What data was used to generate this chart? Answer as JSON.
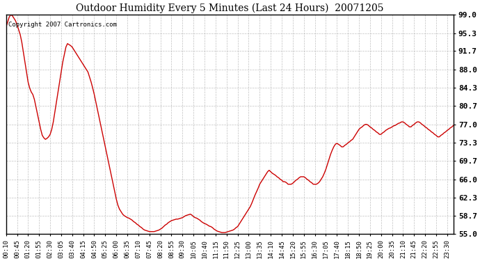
{
  "title": "Outdoor Humidity Every 5 Minutes (Last 24 Hours)  20071205",
  "copyright_text": "Copyright 2007 Cartronics.com",
  "line_color": "#cc0000",
  "bg_color": "#ffffff",
  "plot_bg_color": "#ffffff",
  "grid_color": "#b0b0b0",
  "ylim": [
    55.0,
    99.0
  ],
  "yticks": [
    55.0,
    58.7,
    62.3,
    66.0,
    69.7,
    73.3,
    77.0,
    80.7,
    84.3,
    88.0,
    91.7,
    95.3,
    99.0
  ],
  "x_labels": [
    "00:10",
    "00:45",
    "01:20",
    "01:55",
    "02:30",
    "03:05",
    "03:40",
    "04:15",
    "04:50",
    "05:25",
    "06:00",
    "06:35",
    "07:10",
    "07:45",
    "08:20",
    "08:55",
    "09:30",
    "10:05",
    "10:40",
    "11:15",
    "11:50",
    "12:25",
    "13:00",
    "13:35",
    "14:10",
    "14:45",
    "15:20",
    "15:55",
    "16:30",
    "17:05",
    "17:40",
    "18:15",
    "18:50",
    "19:25",
    "20:00",
    "20:35",
    "21:10",
    "21:45",
    "22:20",
    "22:55",
    "23:30"
  ],
  "x_tick_indices": [
    0,
    7,
    14,
    21,
    28,
    35,
    42,
    49,
    56,
    63,
    70,
    77,
    84,
    91,
    98,
    105,
    112,
    119,
    126,
    133,
    140,
    147,
    154,
    161,
    168,
    175,
    182,
    189,
    196,
    203,
    210,
    217,
    224,
    231,
    238,
    245,
    252,
    259,
    266,
    273,
    280
  ],
  "humidity": [
    96.5,
    97.5,
    98.5,
    99.0,
    98.8,
    98.3,
    97.8,
    97.0,
    96.0,
    95.0,
    93.5,
    91.5,
    89.5,
    87.5,
    85.5,
    84.3,
    83.5,
    83.0,
    82.0,
    80.5,
    79.0,
    77.5,
    76.0,
    74.8,
    74.3,
    74.0,
    74.2,
    74.5,
    75.0,
    76.0,
    77.5,
    79.5,
    81.5,
    83.5,
    85.5,
    87.5,
    89.5,
    91.0,
    92.5,
    93.2,
    93.0,
    92.8,
    92.5,
    92.0,
    91.5,
    91.0,
    90.5,
    90.0,
    89.5,
    89.0,
    88.5,
    88.0,
    87.5,
    86.5,
    85.5,
    84.3,
    83.0,
    81.5,
    80.0,
    78.5,
    77.0,
    75.5,
    74.0,
    72.5,
    71.0,
    69.5,
    68.0,
    66.5,
    65.0,
    63.5,
    62.0,
    60.8,
    60.0,
    59.5,
    59.0,
    58.7,
    58.5,
    58.3,
    58.2,
    58.0,
    57.8,
    57.5,
    57.3,
    57.0,
    56.8,
    56.5,
    56.3,
    56.0,
    55.8,
    55.7,
    55.6,
    55.5,
    55.5,
    55.5,
    55.5,
    55.6,
    55.7,
    55.8,
    56.0,
    56.2,
    56.5,
    56.8,
    57.0,
    57.3,
    57.5,
    57.7,
    57.8,
    57.9,
    58.0,
    58.0,
    58.1,
    58.2,
    58.3,
    58.5,
    58.7,
    58.8,
    58.9,
    59.0,
    58.8,
    58.5,
    58.3,
    58.2,
    58.0,
    57.8,
    57.5,
    57.3,
    57.1,
    57.0,
    56.8,
    56.6,
    56.5,
    56.3,
    56.0,
    55.8,
    55.6,
    55.5,
    55.4,
    55.3,
    55.3,
    55.3,
    55.4,
    55.5,
    55.6,
    55.7,
    55.8,
    56.0,
    56.3,
    56.5,
    57.0,
    57.5,
    58.0,
    58.5,
    59.0,
    59.5,
    60.0,
    60.5,
    61.2,
    62.0,
    62.8,
    63.5,
    64.2,
    65.0,
    65.5,
    66.0,
    66.5,
    67.0,
    67.5,
    67.8,
    67.5,
    67.2,
    67.0,
    66.8,
    66.5,
    66.3,
    66.0,
    65.8,
    65.5,
    65.5,
    65.3,
    65.0,
    65.0,
    65.0,
    65.2,
    65.5,
    65.8,
    66.0,
    66.3,
    66.5,
    66.5,
    66.5,
    66.3,
    66.0,
    65.8,
    65.5,
    65.3,
    65.0,
    65.0,
    65.0,
    65.2,
    65.5,
    66.0,
    66.5,
    67.2,
    68.0,
    69.0,
    70.0,
    71.0,
    71.8,
    72.5,
    73.0,
    73.2,
    73.0,
    72.8,
    72.5,
    72.5,
    72.8,
    73.0,
    73.3,
    73.5,
    73.8,
    74.0,
    74.5,
    75.0,
    75.5,
    76.0,
    76.3,
    76.5,
    76.8,
    77.0,
    77.0,
    76.8,
    76.5,
    76.3,
    76.0,
    75.8,
    75.5,
    75.3,
    75.0,
    75.0,
    75.3,
    75.5,
    75.8,
    76.0,
    76.2,
    76.3,
    76.5,
    76.7,
    76.8,
    77.0,
    77.2,
    77.3,
    77.5,
    77.5,
    77.3,
    77.0,
    76.8,
    76.5,
    76.5,
    76.8,
    77.0,
    77.3,
    77.5,
    77.5,
    77.3,
    77.0,
    76.8,
    76.5,
    76.3,
    76.0,
    75.8,
    75.5,
    75.3,
    75.0,
    74.8,
    74.5,
    74.5,
    74.8,
    75.0,
    75.3,
    75.5,
    75.8,
    76.0,
    76.3,
    76.5,
    76.8
  ]
}
